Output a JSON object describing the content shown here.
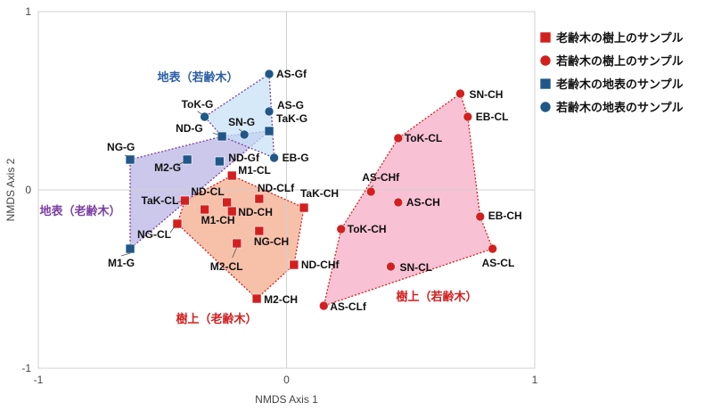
{
  "chart_data": {
    "type": "scatter",
    "xlabel": "NMDS Axis 1",
    "ylabel": "NMDS Axis 2",
    "xlim": [
      -1,
      1
    ],
    "ylim": [
      -1,
      1
    ],
    "xticks": [
      "-1",
      "0",
      "1"
    ],
    "yticks": [
      "1",
      "0",
      "-1"
    ],
    "zero_lines": true,
    "legend_position": "right",
    "series": [
      {
        "name": "老齢木の樹上のサンプル",
        "marker": "square",
        "color": "#d41f1f",
        "hull_fill": "#f4a585",
        "hull_stroke": "#d41f1f",
        "group_label": "樹上（老齢木）",
        "group_label_color": "#d41f1f",
        "points": [
          {
            "label": "M1-CL",
            "x": -0.22,
            "y": 0.08
          },
          {
            "label": "ND-CL",
            "x": -0.24,
            "y": -0.07
          },
          {
            "label": "ND-CLf",
            "x": -0.11,
            "y": -0.05
          },
          {
            "label": "TaK-CL",
            "x": -0.41,
            "y": -0.06
          },
          {
            "label": "M1-CH",
            "x": -0.33,
            "y": -0.11
          },
          {
            "label": "ND-CH",
            "x": -0.22,
            "y": -0.12
          },
          {
            "label": "TaK-CH",
            "x": 0.07,
            "y": -0.1
          },
          {
            "label": "NG-CL",
            "x": -0.44,
            "y": -0.19
          },
          {
            "label": "NG-CH",
            "x": -0.11,
            "y": -0.23
          },
          {
            "label": "M2-CL",
            "x": -0.2,
            "y": -0.3
          },
          {
            "label": "ND-CHf",
            "x": 0.03,
            "y": -0.42
          },
          {
            "label": "M2-CH",
            "x": -0.12,
            "y": -0.61
          }
        ],
        "hull": [
          "M1-CL",
          "TaK-CH",
          "ND-CHf",
          "M2-CH",
          "NG-CL",
          "TaK-CL"
        ]
      },
      {
        "name": "若齢木の樹上のサンプル",
        "marker": "circle",
        "color": "#d41f1f",
        "hull_fill": "#f7a6c2",
        "hull_stroke": "#d41f1f",
        "group_label": "樹上（若齢木）",
        "group_label_color": "#d41f1f",
        "points": [
          {
            "label": "SN-CH",
            "x": 0.7,
            "y": 0.54
          },
          {
            "label": "EB-CL",
            "x": 0.73,
            "y": 0.41
          },
          {
            "label": "ToK-CL",
            "x": 0.45,
            "y": 0.29
          },
          {
            "label": "AS-CHf",
            "x": 0.34,
            "y": -0.01
          },
          {
            "label": "AS-CH",
            "x": 0.45,
            "y": -0.07
          },
          {
            "label": "EB-CH",
            "x": 0.78,
            "y": -0.15
          },
          {
            "label": "ToK-CH",
            "x": 0.22,
            "y": -0.22
          },
          {
            "label": "SN-CL",
            "x": 0.42,
            "y": -0.43
          },
          {
            "label": "AS-CL",
            "x": 0.83,
            "y": -0.33
          },
          {
            "label": "AS-CLf",
            "x": 0.15,
            "y": -0.65
          }
        ],
        "hull": [
          "SN-CH",
          "EB-CL",
          "EB-CH",
          "AS-CL",
          "AS-CLf",
          "ToK-CH",
          "ToK-CL"
        ]
      },
      {
        "name": "老齢木の地表のサンプル",
        "marker": "square",
        "color": "#1f5788",
        "hull_fill": "#b6b0e3",
        "hull_stroke": "#7b3fa1",
        "group_label": "地表（老齢木）",
        "group_label_color": "#7b3fa1",
        "points": [
          {
            "label": "NG-G",
            "x": -0.63,
            "y": 0.17
          },
          {
            "label": "ND-G",
            "x": -0.26,
            "y": 0.3
          },
          {
            "label": "TaK-G",
            "x": -0.07,
            "y": 0.33
          },
          {
            "label": "M2-G",
            "x": -0.4,
            "y": 0.17
          },
          {
            "label": "ND-Gf",
            "x": -0.27,
            "y": 0.16
          },
          {
            "label": "M1-G",
            "x": -0.63,
            "y": -0.33
          }
        ],
        "hull": [
          "NG-G",
          "ND-G",
          "TaK-G",
          "M1-G"
        ]
      },
      {
        "name": "若齢木の地表のサンプル",
        "marker": "circle",
        "color": "#1f5788",
        "hull_fill": "#c5dff5",
        "hull_stroke": "#7b3fa1",
        "group_label": "地表（若齢木）",
        "group_label_color": "#2b5fa6",
        "points": [
          {
            "label": "AS-Gf",
            "x": -0.07,
            "y": 0.65
          },
          {
            "label": "AS-G",
            "x": -0.07,
            "y": 0.44
          },
          {
            "label": "ToK-G",
            "x": -0.33,
            "y": 0.41
          },
          {
            "label": "SN-G",
            "x": -0.17,
            "y": 0.31
          },
          {
            "label": "EB-G",
            "x": -0.05,
            "y": 0.18
          }
        ],
        "hull": [
          "AS-Gf",
          "EB-G",
          "ND-G",
          "ToK-G"
        ]
      }
    ]
  }
}
